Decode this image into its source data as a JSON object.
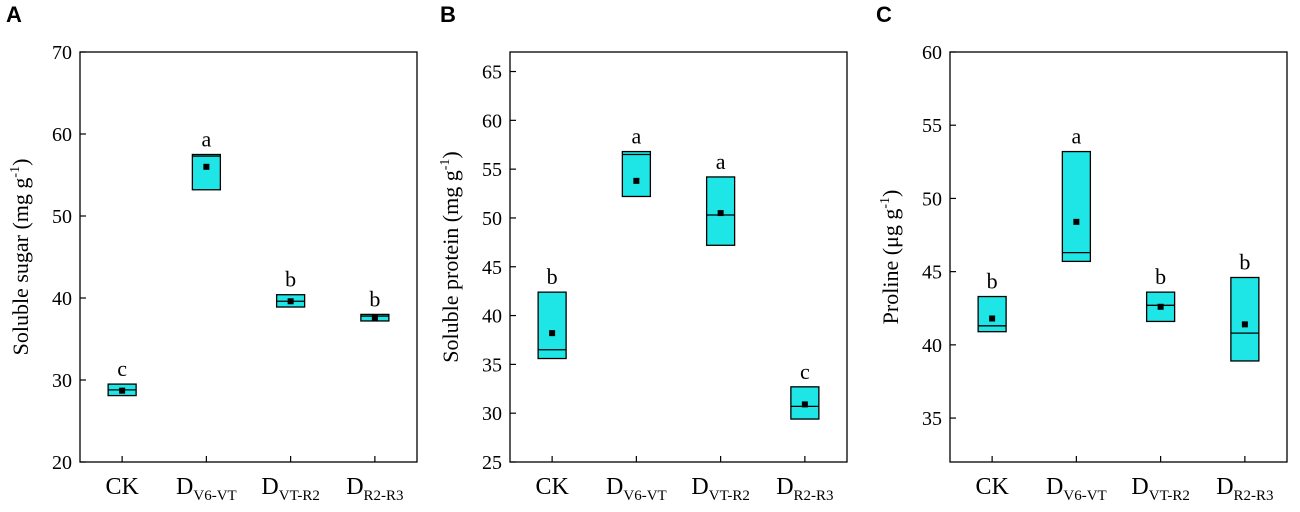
{
  "figure": {
    "box_color": "#1fe6e6",
    "line_color": "#000000"
  },
  "chart_data": [
    {
      "panel": "A",
      "type": "box",
      "ylabel": "Soluble sugar (mg g",
      "ylabel_sup": "-1",
      "ylabel_close": ")",
      "ylim": [
        20,
        70
      ],
      "yticks": [
        20,
        30,
        40,
        50,
        60,
        70
      ],
      "categories": [
        {
          "main": "CK",
          "sub": ""
        },
        {
          "main": "D",
          "sub": "V6-VT"
        },
        {
          "main": "D",
          "sub": "VT-R2"
        },
        {
          "main": "D",
          "sub": "R2-R3"
        }
      ],
      "boxes": [
        {
          "low": 28.1,
          "high": 29.5,
          "median": 28.8,
          "mean": 28.7,
          "letter": "c"
        },
        {
          "low": 53.2,
          "high": 57.5,
          "median": 57.3,
          "mean": 56.0,
          "letter": "a"
        },
        {
          "low": 38.9,
          "high": 40.4,
          "median": 39.6,
          "mean": 39.6,
          "letter": "b"
        },
        {
          "low": 37.2,
          "high": 38.0,
          "median": 37.8,
          "mean": 37.6,
          "letter": "b"
        }
      ]
    },
    {
      "panel": "B",
      "type": "box",
      "ylabel": "Soluble protein (mg g",
      "ylabel_sup": "-1",
      "ylabel_close": ")",
      "ylim": [
        25,
        67
      ],
      "yticks": [
        25,
        30,
        35,
        40,
        45,
        50,
        55,
        60,
        65
      ],
      "categories": [
        {
          "main": "CK",
          "sub": ""
        },
        {
          "main": "D",
          "sub": "V6-VT"
        },
        {
          "main": "D",
          "sub": "VT-R2"
        },
        {
          "main": "D",
          "sub": "R2-R3"
        }
      ],
      "boxes": [
        {
          "low": 35.6,
          "high": 42.4,
          "median": 36.5,
          "mean": 38.2,
          "letter": "b"
        },
        {
          "low": 52.2,
          "high": 56.8,
          "median": 56.5,
          "mean": 53.8,
          "letter": "a"
        },
        {
          "low": 47.2,
          "high": 54.2,
          "median": 50.3,
          "mean": 50.5,
          "letter": "a"
        },
        {
          "low": 29.4,
          "high": 32.7,
          "median": 30.7,
          "mean": 30.9,
          "letter": "c"
        }
      ]
    },
    {
      "panel": "C",
      "type": "box",
      "ylabel": "Proline (μg g",
      "ylabel_sup": "-1",
      "ylabel_close": ")",
      "ylim": [
        32,
        60
      ],
      "yticks": [
        35,
        40,
        45,
        50,
        55,
        60
      ],
      "categories": [
        {
          "main": "CK",
          "sub": ""
        },
        {
          "main": "D",
          "sub": "V6-VT"
        },
        {
          "main": "D",
          "sub": "VT-R2"
        },
        {
          "main": "D",
          "sub": "R2-R3"
        }
      ],
      "boxes": [
        {
          "low": 40.9,
          "high": 43.3,
          "median": 41.3,
          "mean": 41.8,
          "letter": "b"
        },
        {
          "low": 45.7,
          "high": 53.2,
          "median": 46.3,
          "mean": 48.4,
          "letter": "a"
        },
        {
          "low": 41.6,
          "high": 43.6,
          "median": 42.7,
          "mean": 42.6,
          "letter": "b"
        },
        {
          "low": 38.9,
          "high": 44.6,
          "median": 40.8,
          "mean": 41.4,
          "letter": "b"
        }
      ]
    }
  ]
}
